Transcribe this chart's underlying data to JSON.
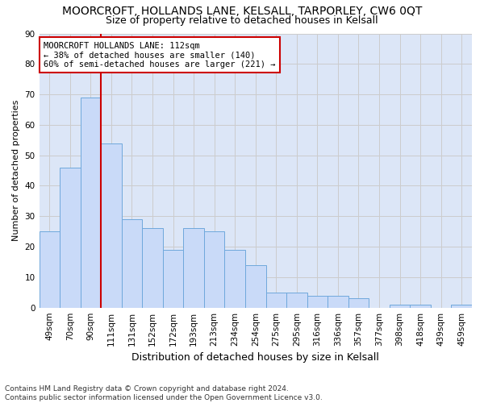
{
  "title": "MOORCROFT, HOLLANDS LANE, KELSALL, TARPORLEY, CW6 0QT",
  "subtitle": "Size of property relative to detached houses in Kelsall",
  "xlabel": "Distribution of detached houses by size in Kelsall",
  "ylabel": "Number of detached properties",
  "categories": [
    "49sqm",
    "70sqm",
    "90sqm",
    "111sqm",
    "131sqm",
    "152sqm",
    "172sqm",
    "193sqm",
    "213sqm",
    "234sqm",
    "254sqm",
    "275sqm",
    "295sqm",
    "316sqm",
    "336sqm",
    "357sqm",
    "377sqm",
    "398sqm",
    "418sqm",
    "439sqm",
    "459sqm"
  ],
  "values": [
    25,
    46,
    69,
    54,
    29,
    26,
    19,
    26,
    25,
    19,
    14,
    5,
    5,
    4,
    4,
    3,
    0,
    1,
    1,
    0,
    1
  ],
  "bar_color": "#c9daf8",
  "bar_edge_color": "#6fa8dc",
  "highlight_index": 2,
  "highlight_line_color": "#cc0000",
  "annotation_text": "MOORCROFT HOLLANDS LANE: 112sqm\n← 38% of detached houses are smaller (140)\n60% of semi-detached houses are larger (221) →",
  "annotation_box_color": "#ffffff",
  "annotation_box_edge": "#cc0000",
  "ylim": [
    0,
    90
  ],
  "yticks": [
    0,
    10,
    20,
    30,
    40,
    50,
    60,
    70,
    80,
    90
  ],
  "grid_color": "#cccccc",
  "bg_color": "#dce6f7",
  "footnote": "Contains HM Land Registry data © Crown copyright and database right 2024.\nContains public sector information licensed under the Open Government Licence v3.0.",
  "title_fontsize": 10,
  "subtitle_fontsize": 9,
  "xlabel_fontsize": 9,
  "ylabel_fontsize": 8,
  "tick_fontsize": 7.5,
  "annot_fontsize": 7.5,
  "footnote_fontsize": 6.5
}
